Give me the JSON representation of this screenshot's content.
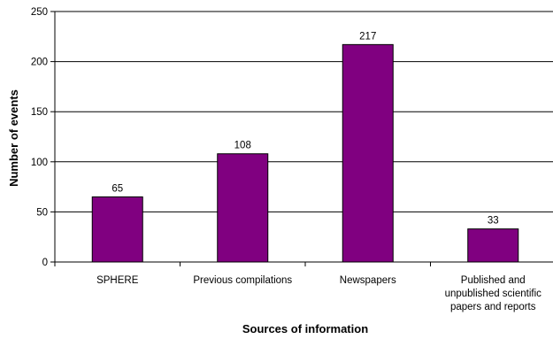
{
  "chart_data": {
    "type": "bar",
    "title": "",
    "xlabel": "Sources of information",
    "ylabel": "Number of events",
    "ylim": [
      0,
      250
    ],
    "yticks": [
      0,
      50,
      100,
      150,
      200,
      250
    ],
    "grid": true,
    "legend": "none",
    "categories": [
      [
        "SPHERE"
      ],
      [
        "Previous compilations"
      ],
      [
        "Newspapers"
      ],
      [
        "Published and",
        "unpublished scientific",
        "papers and reports"
      ]
    ],
    "values": [
      65,
      108,
      217,
      33
    ],
    "data_labels": [
      "65",
      "108",
      "217",
      "33"
    ],
    "bar_color": "#800080",
    "bar_edge_color": "#000000",
    "grid_color": "#000000"
  }
}
